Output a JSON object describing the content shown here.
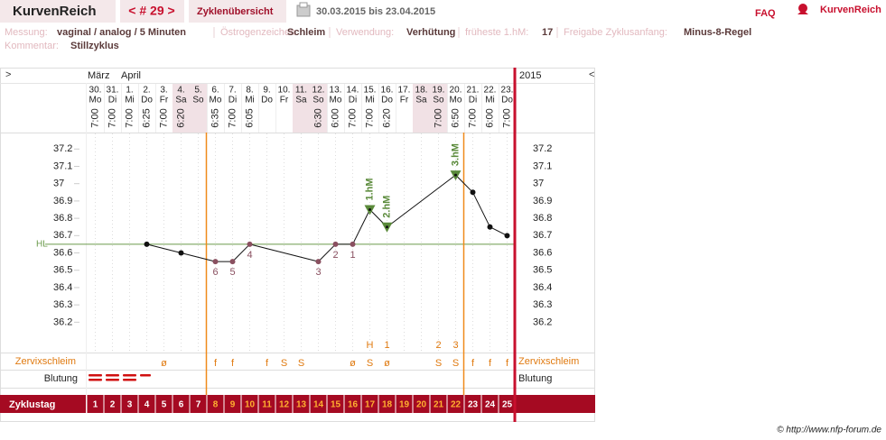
{
  "header": {
    "brand": "KurvenReich",
    "cycle": "< # 29 >",
    "overview": "Zyklenübersicht",
    "range": "30.03.2015 bis 23.04.2015",
    "faq": "FAQ",
    "logo": "KurvenReich"
  },
  "info": {
    "fields": [
      {
        "label": "Messung:",
        "value": "vaginal / analog / 5 Minuten"
      },
      {
        "label": "Östrogenzeichen:",
        "value": "Schleim"
      },
      {
        "label": "Verwendung:",
        "value": "Verhütung"
      },
      {
        "label": "früheste 1.hM:",
        "value": "17"
      },
      {
        "label": "Freigabe Zyklusanfang:",
        "value": "Minus-8-Regel"
      }
    ],
    "comment": {
      "label": "Kommentar:",
      "value": "Stillzyklus"
    }
  },
  "chart_data": {
    "type": "line",
    "nav_prev": ">",
    "nav_next": "<",
    "months": [
      "März",
      "April"
    ],
    "year": "2015",
    "dates": [
      "30.",
      "31.",
      "1.",
      "2.",
      "3.",
      "4.",
      "5.",
      "6.",
      "7.",
      "8.",
      "9.",
      "10.",
      "11.",
      "12.",
      "13.",
      "14.",
      "15.",
      "16.",
      "17.",
      "18.",
      "19.",
      "20.",
      "21.",
      "22.",
      "23."
    ],
    "weekdays": [
      "Mo",
      "Di",
      "Mi",
      "Do",
      "Fr",
      "Sa",
      "So",
      "Mo",
      "Di",
      "Mi",
      "Do",
      "Fr",
      "Sa",
      "So",
      "Mo",
      "Di",
      "Mi",
      "Do",
      "Fr",
      "Sa",
      "So",
      "Mo",
      "Di",
      "Mi",
      "Do"
    ],
    "times": [
      "7:00",
      "7:00",
      "7:00",
      "6:25",
      "7:00",
      "6:20",
      null,
      "6:35",
      "7:00",
      "6:05",
      null,
      null,
      null,
      "6:30",
      "6:00",
      "7:00",
      "7:00",
      "6:20",
      null,
      null,
      "7:00",
      "6:50",
      "7:00",
      "6:00",
      "7:00"
    ],
    "values": [
      null,
      null,
      null,
      36.65,
      null,
      36.6,
      null,
      36.55,
      36.55,
      36.65,
      null,
      null,
      null,
      36.55,
      36.65,
      36.65,
      36.85,
      36.75,
      null,
      null,
      null,
      37.05,
      36.95,
      36.75,
      36.7
    ],
    "point_labels": [
      null,
      null,
      null,
      null,
      null,
      null,
      null,
      "6",
      "5",
      "4",
      null,
      null,
      null,
      "3",
      "2",
      "1",
      "1.hM",
      "2.hM",
      null,
      null,
      null,
      "3.hM",
      null,
      null,
      null
    ],
    "hl": {
      "label": "HL",
      "value": 36.65
    },
    "ylim": [
      36.03,
      37.29
    ],
    "yticks": [
      37.2,
      37.1,
      37,
      36.9,
      36.8,
      36.7,
      36.6,
      36.5,
      36.4,
      36.3,
      36.2
    ],
    "peak": [
      null,
      null,
      null,
      null,
      null,
      null,
      null,
      null,
      null,
      null,
      null,
      null,
      null,
      null,
      null,
      null,
      "H",
      "1",
      null,
      null,
      "2",
      "3",
      null,
      null,
      null
    ],
    "mucus": {
      "label": "Zervixschleim",
      "values": [
        null,
        null,
        null,
        null,
        "ø",
        null,
        null,
        "f",
        "f",
        null,
        "f",
        "S",
        "S",
        null,
        null,
        "ø",
        "S",
        "ø",
        null,
        null,
        "S",
        "S",
        "f",
        "f",
        "f"
      ]
    },
    "bleeding_label": "Blutung",
    "cycle_day": {
      "label": "Zyklustag",
      "values": [
        1,
        2,
        3,
        4,
        5,
        6,
        7,
        8,
        9,
        10,
        11,
        12,
        13,
        14,
        15,
        16,
        17,
        18,
        19,
        20,
        21,
        22,
        23,
        24,
        25
      ]
    }
  },
  "footer": "© http://www.nfp-forum.de"
}
